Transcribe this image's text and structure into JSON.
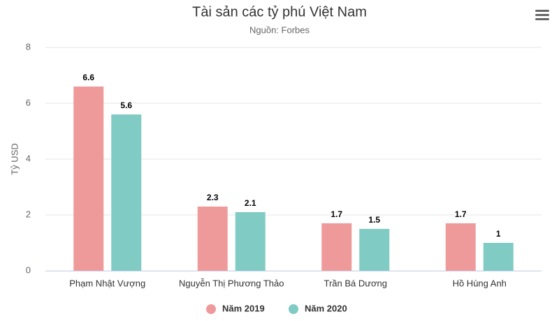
{
  "chart_data": {
    "type": "bar",
    "title": "Tài sản các tỷ phú Việt Nam",
    "subtitle": "Nguồn: Forbes",
    "y_label": "Tỷ USD",
    "categories": [
      "Phạm Nhật Vượng",
      "Nguyễn Thị Phương Thảo",
      "Trần Bá Dương",
      "Hồ Hùng Anh"
    ],
    "series": [
      {
        "name": "Năm 2019",
        "color": "#ef9a9a",
        "values": [
          6.6,
          2.3,
          1.7,
          1.7
        ]
      },
      {
        "name": "Năm 2020",
        "color": "#80cbc4",
        "values": [
          5.6,
          2.1,
          1.5,
          1
        ]
      }
    ],
    "ylim": [
      0,
      8
    ],
    "yticks": [
      0,
      2,
      4,
      6,
      8
    ],
    "grid": true
  }
}
